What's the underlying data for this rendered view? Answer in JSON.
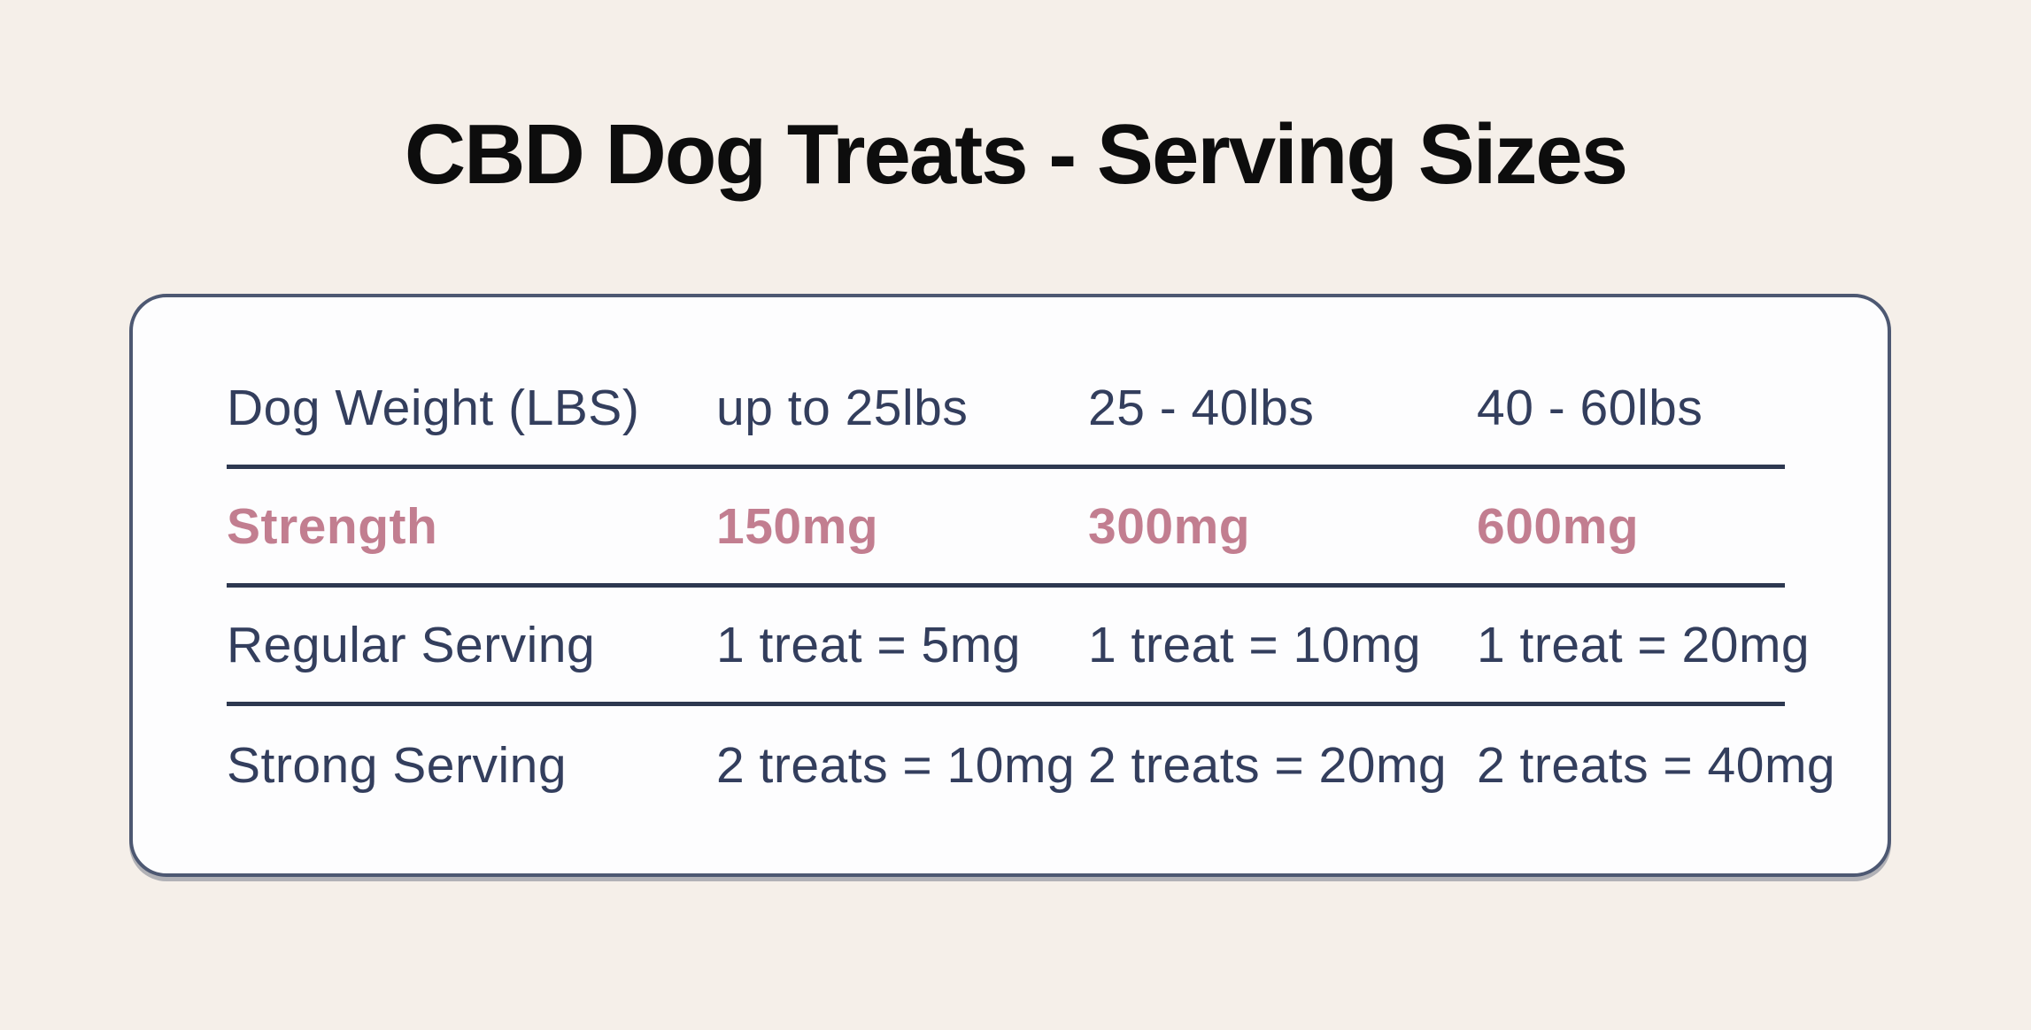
{
  "chart_data": {
    "type": "table",
    "title": "CBD Dog Treats - Serving Sizes",
    "columns": [
      "Dog Weight (LBS)",
      "up to 25lbs",
      "25 - 40lbs",
      "40 - 60lbs"
    ],
    "rows": [
      {
        "label": "Strength",
        "values": [
          "150mg",
          "300mg",
          "600mg"
        ],
        "accent": true
      },
      {
        "label": "Regular Serving",
        "values": [
          "1 treat = 5mg",
          "1 treat = 10mg",
          "1 treat = 20mg"
        ],
        "accent": false
      },
      {
        "label": "Strong Serving",
        "values": [
          "2 treats = 10mg",
          "2 treats = 20mg",
          "2 treats = 40mg"
        ],
        "accent": false
      }
    ],
    "layout": {
      "gridlines": "horizontal-only",
      "legend": "none",
      "header_position": "top-row"
    }
  },
  "colors": {
    "page_background": "#f5efe9",
    "card_background": "#fdfdfe",
    "card_border": "#4d5872",
    "divider": "#2d3850",
    "text_navy": "#333e5d",
    "accent_pink": "#c27e90",
    "title_black": "#0d0d0d"
  }
}
